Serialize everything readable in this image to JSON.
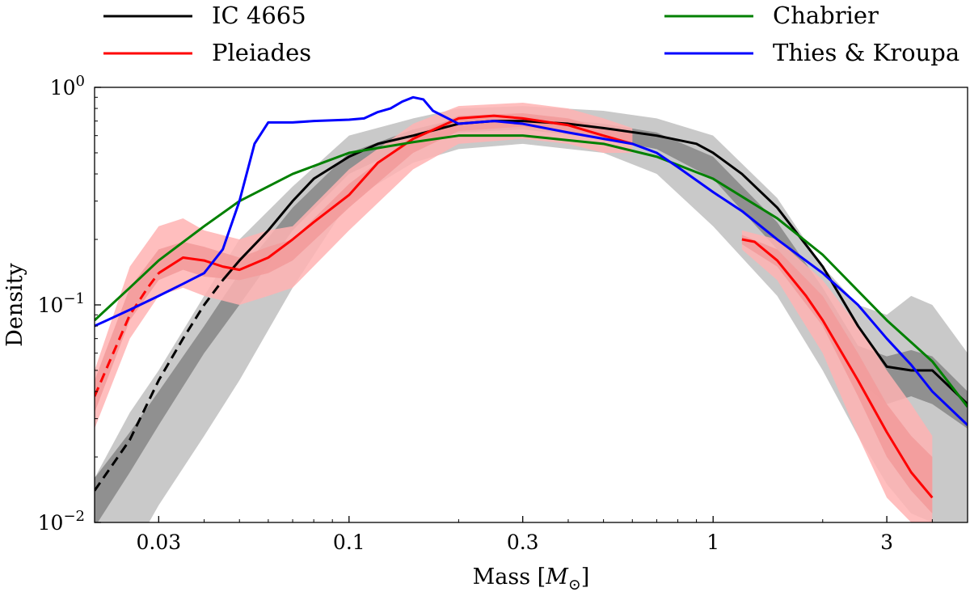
{
  "chart_data": {
    "type": "line",
    "xscale": "log",
    "yscale": "log",
    "xlim": [
      0.02,
      5.0
    ],
    "ylim": [
      0.01,
      1.0
    ],
    "xlabel": "Mass [M⊙]",
    "ylabel": "Density",
    "xticks": [
      {
        "value": 0.03,
        "label": "0.03"
      },
      {
        "value": 0.1,
        "label": "0.1"
      },
      {
        "value": 0.3,
        "label": "0.3"
      },
      {
        "value": 1,
        "label": "1"
      },
      {
        "value": 3,
        "label": "3"
      }
    ],
    "yticks": [
      {
        "value": 1.0,
        "label_base": "10",
        "label_exp": "0"
      },
      {
        "value": 0.1,
        "label_base": "10",
        "label_exp": "−1"
      },
      {
        "value": 0.01,
        "label_base": "10",
        "label_exp": "−2"
      }
    ],
    "legend": [
      {
        "name": "IC 4665",
        "color": "#000000"
      },
      {
        "name": "Pleiades",
        "color": "#ff0000"
      },
      {
        "name": "Chabrier",
        "color": "#008000"
      },
      {
        "name": "Thies & Kroupa",
        "color": "#0000ff"
      }
    ],
    "bands": [
      {
        "name": "IC 4665 outer band",
        "color": "#b4b4b4",
        "opacity": 0.72,
        "x": [
          0.02,
          0.025,
          0.03,
          0.04,
          0.05,
          0.07,
          0.1,
          0.15,
          0.2,
          0.3,
          0.5,
          0.7,
          1.0,
          1.5,
          2.0,
          2.5,
          3.0,
          3.5,
          4.0,
          5.0
        ],
        "low": [
          0.0045,
          0.007,
          0.012,
          0.025,
          0.045,
          0.12,
          0.3,
          0.45,
          0.52,
          0.55,
          0.5,
          0.4,
          0.23,
          0.11,
          0.05,
          0.025,
          0.015,
          0.011,
          0.01,
          0.01
        ],
        "high": [
          0.016,
          0.032,
          0.05,
          0.11,
          0.2,
          0.35,
          0.6,
          0.72,
          0.8,
          0.82,
          0.78,
          0.72,
          0.6,
          0.31,
          0.15,
          0.1,
          0.09,
          0.11,
          0.1,
          0.06
        ]
      },
      {
        "name": "IC 4665 inner band",
        "color": "#7a7a7a",
        "opacity": 0.72,
        "x": [
          0.02,
          0.025,
          0.03,
          0.04,
          0.05,
          0.07,
          0.1,
          0.15,
          0.2,
          0.3,
          0.5,
          0.7,
          1.0,
          1.5,
          2.0,
          2.5,
          3.0,
          3.5,
          4.0,
          5.0
        ],
        "low": [
          0.0095,
          0.017,
          0.028,
          0.06,
          0.1,
          0.22,
          0.4,
          0.55,
          0.62,
          0.64,
          0.58,
          0.52,
          0.38,
          0.18,
          0.09,
          0.045,
          0.035,
          0.038,
          0.035,
          0.027
        ],
        "high": [
          0.016,
          0.026,
          0.04,
          0.08,
          0.14,
          0.28,
          0.5,
          0.64,
          0.72,
          0.74,
          0.68,
          0.62,
          0.48,
          0.24,
          0.12,
          0.065,
          0.058,
          0.062,
          0.058,
          0.04
        ]
      },
      {
        "name": "Pleiades outer band",
        "color": "#ffb3b3",
        "opacity": 0.85,
        "x": [
          0.02,
          0.025,
          0.03,
          0.035,
          0.04,
          0.05,
          0.06,
          0.07,
          0.1,
          0.15,
          0.2,
          0.3,
          0.4,
          0.5,
          0.6
        ],
        "low": [
          0.027,
          0.07,
          0.11,
          0.12,
          0.11,
          0.1,
          0.11,
          0.12,
          0.22,
          0.42,
          0.55,
          0.58,
          0.55,
          0.5,
          0.5
        ],
        "high": [
          0.05,
          0.15,
          0.23,
          0.25,
          0.22,
          0.2,
          0.22,
          0.23,
          0.42,
          0.68,
          0.82,
          0.85,
          0.8,
          0.72,
          0.65
        ]
      },
      {
        "name": "Pleiades inner band",
        "color": "#f29a9a",
        "opacity": 0.85,
        "x": [
          0.02,
          0.025,
          0.03,
          0.035,
          0.04,
          0.05,
          0.06,
          0.07,
          0.1,
          0.15,
          0.2,
          0.3,
          0.4,
          0.5,
          0.6
        ],
        "low": [
          0.032,
          0.085,
          0.13,
          0.145,
          0.135,
          0.13,
          0.14,
          0.16,
          0.28,
          0.5,
          0.63,
          0.66,
          0.62,
          0.57,
          0.55
        ],
        "high": [
          0.045,
          0.12,
          0.18,
          0.195,
          0.185,
          0.165,
          0.185,
          0.2,
          0.36,
          0.6,
          0.74,
          0.76,
          0.72,
          0.65,
          0.62
        ]
      },
      {
        "name": "Pleiades high-mass outer band",
        "color": "#ffb3b3",
        "opacity": 0.85,
        "x": [
          1.2,
          1.5,
          2.0,
          2.5,
          3.0,
          3.5,
          4.0
        ],
        "low": [
          0.18,
          0.13,
          0.06,
          0.025,
          0.013,
          0.01,
          0.01
        ],
        "high": [
          0.22,
          0.2,
          0.13,
          0.08,
          0.05,
          0.035,
          0.025
        ]
      },
      {
        "name": "Pleiades high-mass inner band",
        "color": "#f29a9a",
        "opacity": 0.85,
        "x": [
          1.2,
          1.5,
          2.0,
          2.5,
          3.0,
          3.5,
          4.0
        ],
        "low": [
          0.19,
          0.15,
          0.08,
          0.038,
          0.02,
          0.014,
          0.011
        ],
        "high": [
          0.21,
          0.18,
          0.11,
          0.06,
          0.035,
          0.025,
          0.02
        ]
      }
    ],
    "series": [
      {
        "name": "IC 4665 (extrapolated)",
        "color": "#000000",
        "dashed": true,
        "x": [
          0.02,
          0.025,
          0.03,
          0.035,
          0.04,
          0.045
        ],
        "y": [
          0.014,
          0.024,
          0.045,
          0.07,
          0.1,
          0.13
        ]
      },
      {
        "name": "IC 4665",
        "color": "#000000",
        "dashed": false,
        "x": [
          0.045,
          0.05,
          0.06,
          0.07,
          0.08,
          0.1,
          0.12,
          0.15,
          0.2,
          0.25,
          0.3,
          0.4,
          0.5,
          0.7,
          0.9,
          1.0,
          1.2,
          1.5,
          2.0,
          2.5,
          3.0,
          3.5,
          4.0,
          5.0
        ],
        "y": [
          0.13,
          0.16,
          0.22,
          0.3,
          0.38,
          0.48,
          0.55,
          0.6,
          0.68,
          0.7,
          0.7,
          0.68,
          0.65,
          0.6,
          0.55,
          0.5,
          0.4,
          0.28,
          0.15,
          0.08,
          0.052,
          0.05,
          0.05,
          0.035
        ]
      },
      {
        "name": "Pleiades (extrapolated)",
        "color": "#ff0000",
        "dashed": true,
        "x": [
          0.02,
          0.022,
          0.025,
          0.028,
          0.03
        ],
        "y": [
          0.038,
          0.055,
          0.09,
          0.12,
          0.14
        ]
      },
      {
        "name": "Pleiades",
        "color": "#ff0000",
        "dashed": false,
        "x": [
          0.03,
          0.035,
          0.04,
          0.045,
          0.05,
          0.06,
          0.07,
          0.08,
          0.1,
          0.12,
          0.15,
          0.2,
          0.25,
          0.3,
          0.4,
          0.5,
          0.6
        ],
        "y": [
          0.14,
          0.165,
          0.16,
          0.15,
          0.145,
          0.165,
          0.2,
          0.24,
          0.32,
          0.45,
          0.58,
          0.72,
          0.74,
          0.72,
          0.67,
          0.6,
          0.55
        ]
      },
      {
        "name": "Pleiades (high mass)",
        "color": "#ff0000",
        "dashed": false,
        "x": [
          1.2,
          1.3,
          1.5,
          1.8,
          2.0,
          2.5,
          3.0,
          3.5,
          4.0
        ],
        "y": [
          0.2,
          0.195,
          0.16,
          0.11,
          0.085,
          0.045,
          0.026,
          0.017,
          0.013
        ]
      },
      {
        "name": "Chabrier",
        "color": "#008000",
        "dashed": false,
        "x": [
          0.02,
          0.025,
          0.03,
          0.04,
          0.05,
          0.07,
          0.1,
          0.15,
          0.2,
          0.3,
          0.5,
          0.7,
          1.0,
          1.5,
          2.0,
          3.0,
          4.0,
          5.0
        ],
        "y": [
          0.085,
          0.12,
          0.16,
          0.23,
          0.3,
          0.4,
          0.5,
          0.56,
          0.6,
          0.6,
          0.55,
          0.48,
          0.38,
          0.25,
          0.17,
          0.085,
          0.055,
          0.034
        ]
      },
      {
        "name": "Thies & Kroupa",
        "color": "#0000ff",
        "dashed": false,
        "x": [
          0.02,
          0.025,
          0.03,
          0.035,
          0.04,
          0.045,
          0.05,
          0.055,
          0.06,
          0.07,
          0.08,
          0.1,
          0.11,
          0.12,
          0.13,
          0.14,
          0.15,
          0.16,
          0.17,
          0.2,
          0.25,
          0.3,
          0.4,
          0.5,
          0.6,
          0.7,
          0.8,
          1.0,
          1.2,
          1.5,
          2.0,
          2.5,
          3.0,
          3.5,
          4.0,
          5.0
        ],
        "y": [
          0.08,
          0.095,
          0.11,
          0.125,
          0.14,
          0.18,
          0.3,
          0.55,
          0.69,
          0.69,
          0.7,
          0.71,
          0.72,
          0.77,
          0.8,
          0.86,
          0.9,
          0.88,
          0.78,
          0.68,
          0.7,
          0.68,
          0.62,
          0.58,
          0.55,
          0.5,
          0.43,
          0.33,
          0.27,
          0.2,
          0.14,
          0.1,
          0.07,
          0.053,
          0.04,
          0.028
        ]
      }
    ]
  }
}
